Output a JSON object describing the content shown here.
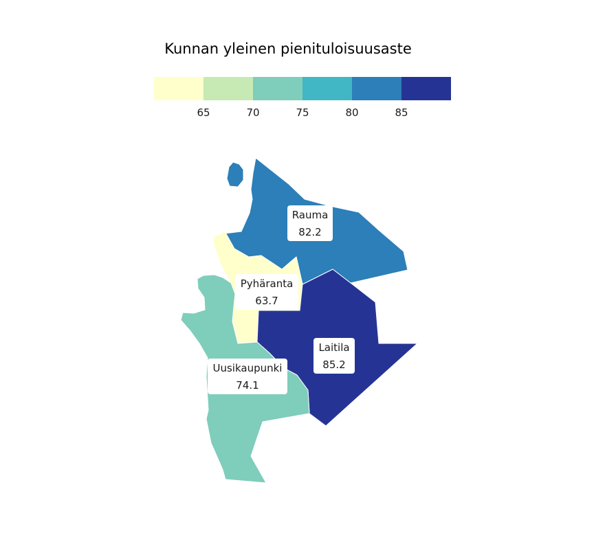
{
  "map": {
    "title": "Kunnan yleinen pienituloisuusaste",
    "legend": {
      "bins": [
        {
          "color": "#ffffcc",
          "label": ""
        },
        {
          "color": "#c7e9b4",
          "label": "65"
        },
        {
          "color": "#7fcdbb",
          "label": "70"
        },
        {
          "color": "#41b6c4",
          "label": "75"
        },
        {
          "color": "#2c7fb8",
          "label": "80"
        },
        {
          "color": "#253494",
          "label": "85"
        }
      ]
    },
    "regions": [
      {
        "name": "Rauma",
        "value": "82.2",
        "color": "#2c7fb8"
      },
      {
        "name": "Pyhäranta",
        "value": "63.7",
        "color": "#ffffcc"
      },
      {
        "name": "Laitila",
        "value": "85.2",
        "color": "#253494"
      },
      {
        "name": "Uusikaupunki",
        "value": "74.1",
        "color": "#7fcdbb"
      }
    ]
  }
}
